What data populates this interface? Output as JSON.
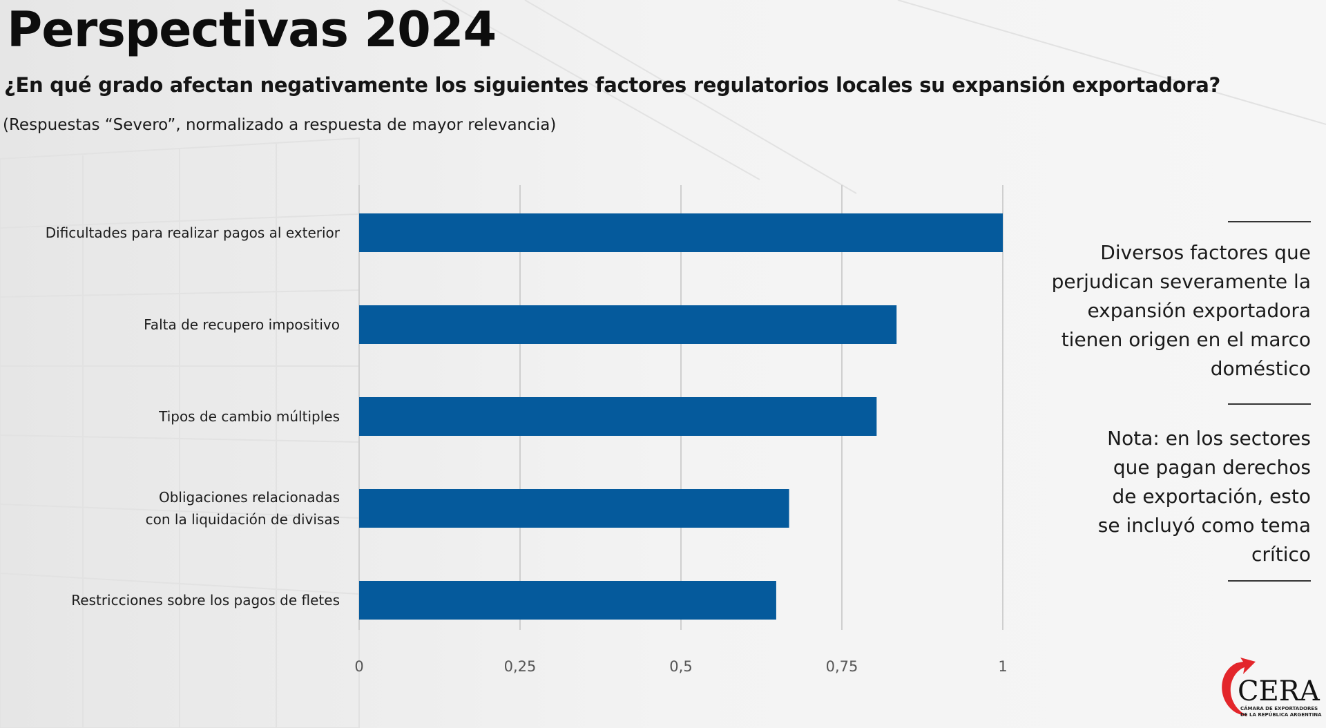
{
  "header": {
    "title": "Perspectivas 2024",
    "question": "¿En qué grado afectan negativamente los siguientes factores regulatorios locales su expansión exportadora?",
    "note": "(Respuestas “Severo”,  normalizado a respuesta de mayor relevancia)"
  },
  "chart_data": {
    "type": "bar",
    "orientation": "horizontal",
    "title": "¿En qué grado afectan negativamente los siguientes factores regulatorios locales su expansión exportadora?",
    "xlabel": "",
    "ylabel": "",
    "categories": [
      [
        "Dificultades para realizar pagos al exterior"
      ],
      [
        "Falta de recupero impositivo"
      ],
      [
        "Tipos de cambio múltiples"
      ],
      [
        "Obligaciones relacionadas",
        "con la liquidación de divisas"
      ],
      [
        "Restricciones sobre los pagos de fletes"
      ]
    ],
    "values": [
      1.0,
      0.835,
      0.804,
      0.668,
      0.648
    ],
    "xlim": [
      0,
      1
    ],
    "ticks": [
      0,
      0.25,
      0.5,
      0.75,
      1
    ],
    "tick_labels": [
      "0",
      "0,25",
      "0,5",
      "0,75",
      "1"
    ],
    "grid": true,
    "bar_color": "#055a9c",
    "grid_color": "#cfcfcf"
  },
  "sidebar": {
    "main_text": [
      "Diversos factores que",
      "perjudican severamente la",
      "expansión exportadora",
      "tienen origen en el marco",
      "doméstico"
    ],
    "note_text": [
      "Nota: en los sectores",
      "que pagan derechos",
      "de exportación, esto",
      "se incluyó como tema",
      "crítico"
    ]
  },
  "logo": {
    "name": "CERA",
    "tagline_1": "CÁMARA DE EXPORTADORES",
    "tagline_2": "DE LA REPÚBLICA ARGENTINA",
    "accent": "#e3262b"
  }
}
